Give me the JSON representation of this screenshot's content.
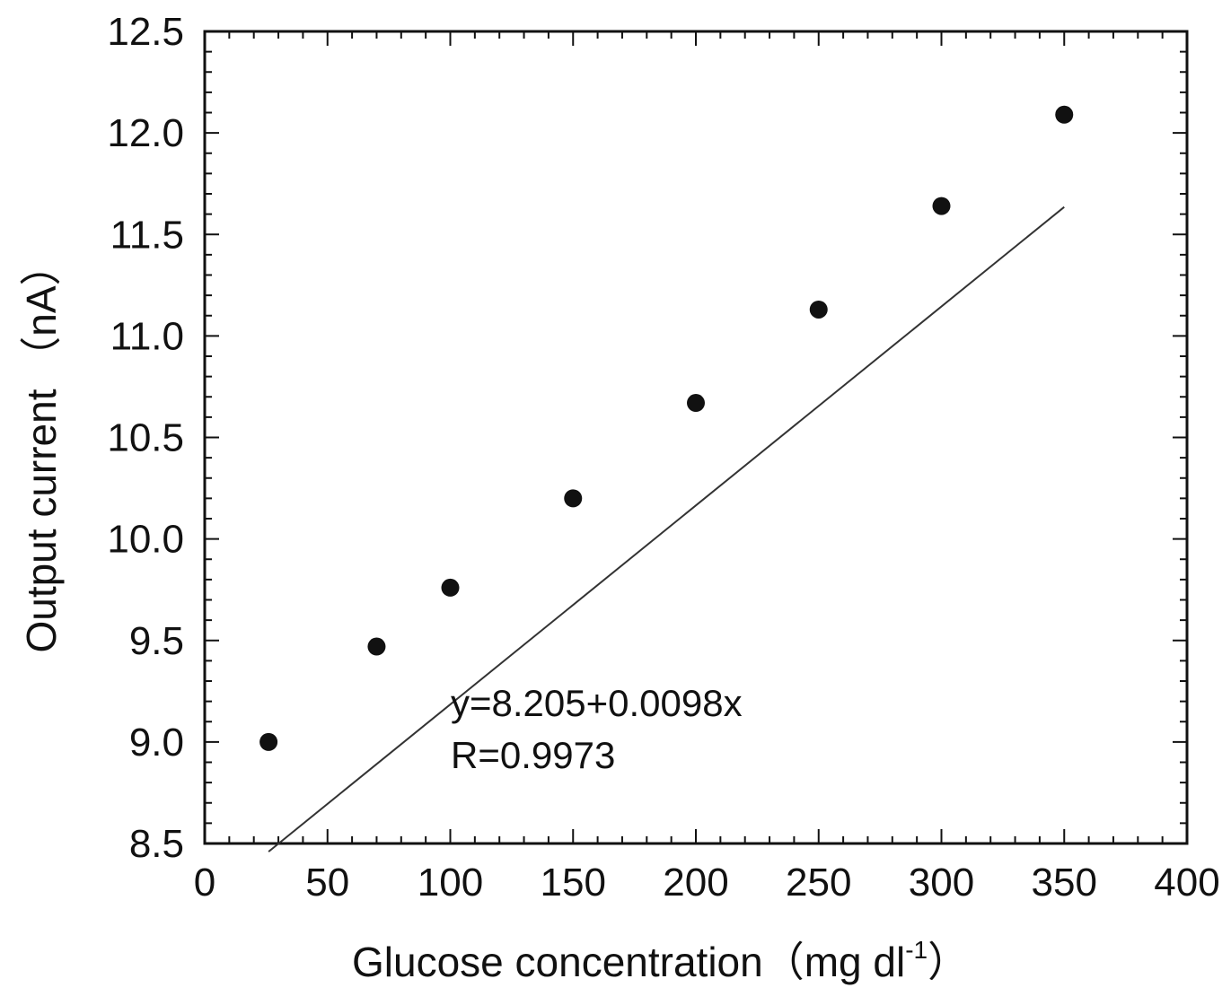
{
  "chart_data": {
    "type": "scatter",
    "xlabel": "Glucose concentration（mg dl",
    "xlabel_sup": "-1",
    "xlabel_close": "）",
    "ylabel": "Output current （nA）",
    "xlim": [
      0,
      400
    ],
    "ylim": [
      8.5,
      12.5
    ],
    "xticks": [
      "0",
      "50",
      "100",
      "150",
      "200",
      "250",
      "300",
      "350",
      "400"
    ],
    "yticks": [
      "8.5",
      "9.0",
      "9.5",
      "10.0",
      "10.5",
      "11.0",
      "11.5",
      "12.0",
      "12.5"
    ],
    "grid": false,
    "series": [
      {
        "x": [
          26,
          70,
          100,
          150,
          200,
          250,
          300,
          350
        ],
        "y": [
          9.0,
          9.47,
          9.76,
          10.2,
          10.67,
          11.13,
          11.64,
          12.09
        ]
      }
    ],
    "fit_line": {
      "intercept": 8.205,
      "slope": 0.0098,
      "x_range": [
        26,
        350
      ]
    },
    "annotations": [
      "y=8.205+0.0098x",
      "R=0.9973"
    ]
  }
}
